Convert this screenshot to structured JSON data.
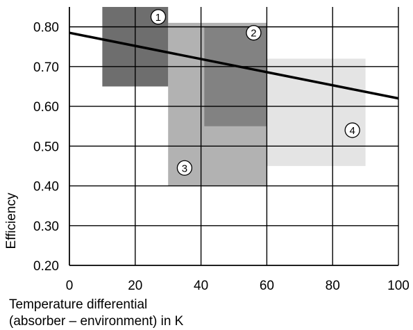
{
  "chart_data": {
    "type": "area",
    "xlabel_lines": [
      "Temperature differential",
      "(absorber – environment) in K"
    ],
    "ylabel": "Efficiency",
    "xlim": [
      0,
      100
    ],
    "ylim": [
      0.2,
      0.85
    ],
    "x_ticks": [
      0,
      20,
      40,
      60,
      80,
      100
    ],
    "x_tick_labels": [
      "0",
      "20",
      "40",
      "60",
      "80",
      "100"
    ],
    "y_ticks": [
      0.2,
      0.3,
      0.4,
      0.5,
      0.6,
      0.7,
      0.8
    ],
    "y_tick_labels": [
      "0.20",
      "0.30",
      "0.40",
      "0.50",
      "0.60",
      "0.70",
      "0.80"
    ],
    "grid": true,
    "regions": [
      {
        "label": "4",
        "x": [
          60,
          90
        ],
        "y": [
          0.45,
          0.72
        ],
        "color": "#e4e4e4"
      },
      {
        "label": "3",
        "x": [
          30,
          60
        ],
        "y": [
          0.4,
          0.81
        ],
        "color": "#b2b2b2"
      },
      {
        "label": "1",
        "x": [
          10,
          30
        ],
        "y": [
          0.65,
          0.85
        ],
        "color": "#6e6e6e"
      },
      {
        "label": "2",
        "x": [
          41,
          60
        ],
        "y": [
          0.55,
          0.8
        ],
        "color": "#828282"
      }
    ],
    "markers": [
      {
        "label": "1",
        "x": 27,
        "y": 0.825
      },
      {
        "label": "2",
        "x": 56,
        "y": 0.785
      },
      {
        "label": "3",
        "x": 35,
        "y": 0.445
      },
      {
        "label": "4",
        "x": 86,
        "y": 0.54
      }
    ],
    "series": [
      {
        "x": [
          0,
          100
        ],
        "y": [
          0.785,
          0.62
        ],
        "color": "#000000"
      }
    ]
  }
}
